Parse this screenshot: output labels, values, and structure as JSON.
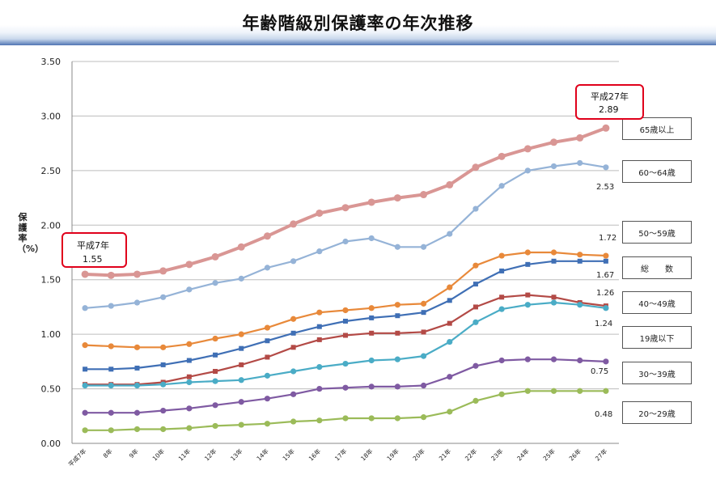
{
  "title": "年齢階級別保護率の年次推移",
  "chart_data": {
    "type": "line",
    "title": "年齢階級別保護率の年次推移",
    "ylabel": "保護率（%）",
    "xlabel": "",
    "ylim": [
      0,
      3.5
    ],
    "yticks": [
      "0.00",
      "0.50",
      "1.00",
      "1.50",
      "2.00",
      "2.50",
      "3.00",
      "3.50"
    ],
    "grid": "horizontal",
    "categories": [
      "平成7年",
      "8年",
      "9年",
      "10年",
      "11年",
      "12年",
      "13年",
      "14年",
      "15年",
      "16年",
      "17年",
      "18年",
      "19年",
      "20年",
      "21年",
      "22年",
      "23年",
      "24年",
      "25年",
      "26年",
      "27年"
    ],
    "series": [
      {
        "name": "65歳以上",
        "color": "#d99694",
        "values": [
          1.55,
          1.54,
          1.55,
          1.58,
          1.64,
          1.71,
          1.8,
          1.9,
          2.01,
          2.11,
          2.16,
          2.21,
          2.25,
          2.28,
          2.37,
          2.53,
          2.63,
          2.7,
          2.76,
          2.8,
          2.89
        ]
      },
      {
        "name": "60～64歳",
        "color": "#95b3d7",
        "values": [
          1.24,
          1.26,
          1.29,
          1.34,
          1.41,
          1.47,
          1.51,
          1.61,
          1.67,
          1.76,
          1.85,
          1.88,
          1.8,
          1.8,
          1.92,
          2.15,
          2.36,
          2.5,
          2.54,
          2.57,
          2.53
        ]
      },
      {
        "name": "50～59歳",
        "color": "#e8893a",
        "values": [
          0.9,
          0.89,
          0.88,
          0.88,
          0.91,
          0.96,
          1.0,
          1.06,
          1.14,
          1.2,
          1.22,
          1.24,
          1.27,
          1.28,
          1.43,
          1.63,
          1.72,
          1.75,
          1.75,
          1.73,
          1.72
        ]
      },
      {
        "name": "総　　数",
        "color": "#3f6fb5",
        "values": [
          0.68,
          0.68,
          0.69,
          0.72,
          0.76,
          0.81,
          0.87,
          0.94,
          1.01,
          1.07,
          1.12,
          1.15,
          1.17,
          1.2,
          1.31,
          1.46,
          1.58,
          1.64,
          1.67,
          1.67,
          1.67
        ]
      },
      {
        "name": "40～49歳",
        "color": "#b34a46",
        "values": [
          0.54,
          0.54,
          0.54,
          0.56,
          0.61,
          0.66,
          0.72,
          0.79,
          0.88,
          0.95,
          0.99,
          1.01,
          1.01,
          1.02,
          1.1,
          1.25,
          1.34,
          1.36,
          1.34,
          1.29,
          1.26
        ]
      },
      {
        "name": "19歳以下",
        "color": "#4aacc6",
        "values": [
          0.53,
          0.53,
          0.53,
          0.54,
          0.56,
          0.57,
          0.58,
          0.62,
          0.66,
          0.7,
          0.73,
          0.76,
          0.77,
          0.8,
          0.93,
          1.11,
          1.23,
          1.27,
          1.29,
          1.27,
          1.24
        ]
      },
      {
        "name": "30～39歳",
        "color": "#7f5aa2",
        "values": [
          0.28,
          0.28,
          0.28,
          0.3,
          0.32,
          0.35,
          0.38,
          0.41,
          0.45,
          0.5,
          0.51,
          0.52,
          0.52,
          0.53,
          0.61,
          0.71,
          0.76,
          0.77,
          0.77,
          0.76,
          0.75
        ]
      },
      {
        "name": "20～29歳",
        "color": "#9bbb59",
        "values": [
          0.12,
          0.12,
          0.13,
          0.13,
          0.14,
          0.16,
          0.17,
          0.18,
          0.2,
          0.21,
          0.23,
          0.23,
          0.23,
          0.24,
          0.29,
          0.39,
          0.45,
          0.48,
          0.48,
          0.48,
          0.48
        ]
      }
    ],
    "end_labels": [
      "1.72",
      "1.67",
      "1.26",
      "1.24",
      "0.75",
      "0.48",
      "2.53"
    ],
    "annotations": [
      {
        "line1": "平成7年",
        "line2": "1.55"
      },
      {
        "line1": "平成27年",
        "line2": "2.89"
      }
    ]
  }
}
